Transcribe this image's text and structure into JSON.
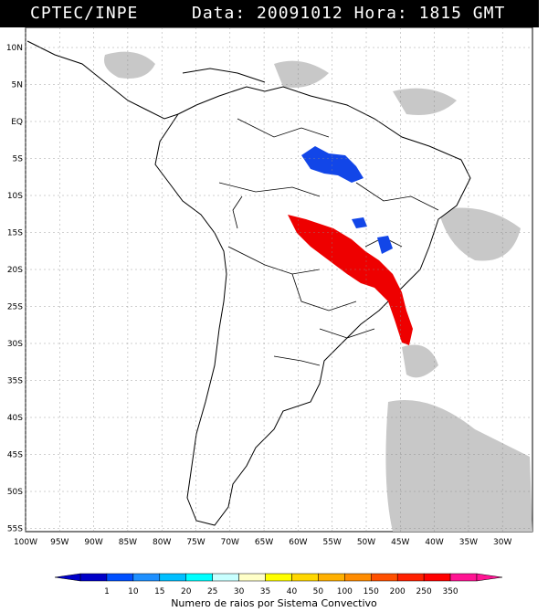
{
  "header": {
    "source": "CPTEC/INPE",
    "date_label": "Data:",
    "date": "20091012",
    "hour_label": "Hora:",
    "hour": "1815 GMT"
  },
  "map": {
    "lat_labels": [
      "10N",
      "5N",
      "EQ",
      "5S",
      "10S",
      "15S",
      "20S",
      "25S",
      "30S",
      "35S",
      "40S",
      "45S",
      "50S",
      "55S"
    ],
    "lon_labels": [
      "100W",
      "95W",
      "90W",
      "85W",
      "80W",
      "75W",
      "70W",
      "65W",
      "60W",
      "55W",
      "50W",
      "45W",
      "40W",
      "35W",
      "30W"
    ],
    "colors": {
      "cloud": "#c8c8c8",
      "land": "#ffffff",
      "border": "#000000",
      "low_class": "#1246e8",
      "high_class": "#ee0000"
    }
  },
  "colorbar": {
    "title": "Numero de raios por Sistema Convectivo",
    "labels": [
      "1",
      "10",
      "15",
      "20",
      "25",
      "30",
      "35",
      "40",
      "50",
      "100",
      "150",
      "200",
      "250",
      "350"
    ],
    "colors": [
      "#0000c8",
      "#0050ff",
      "#1e90ff",
      "#00bfff",
      "#00ffff",
      "#c8ffff",
      "#ffffc8",
      "#ffff00",
      "#ffd700",
      "#ffb000",
      "#ff8c00",
      "#ff5000",
      "#ff2000",
      "#ff0000",
      "#ff1493"
    ]
  }
}
